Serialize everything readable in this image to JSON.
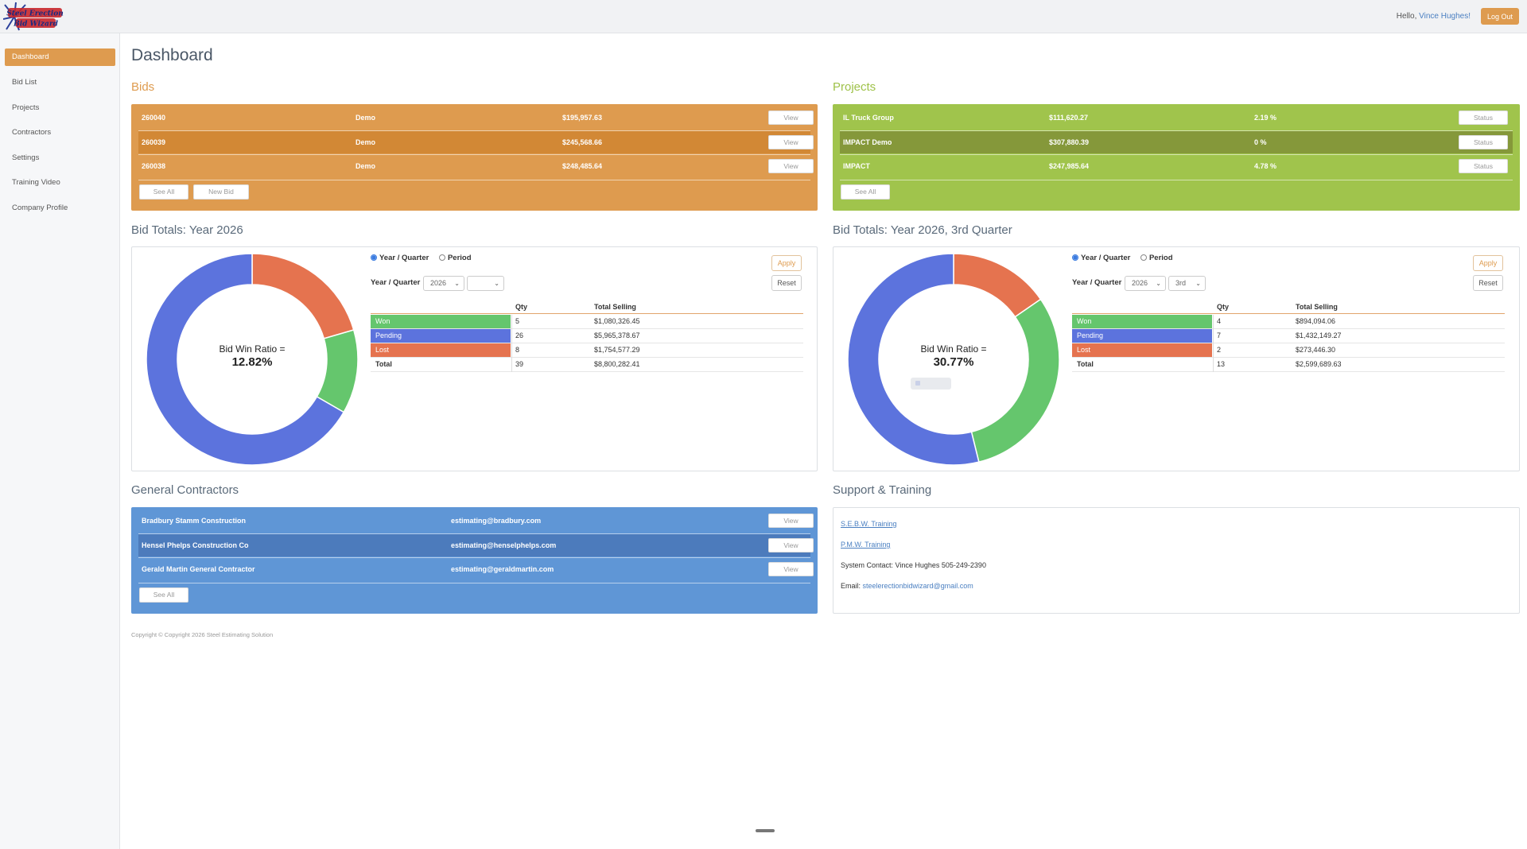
{
  "header": {
    "logo_text": "Steel Erection Bid Wizard",
    "hello": "Hello, ",
    "user_name": "Vince Hughes!",
    "logout": "Log Out"
  },
  "sidebar": {
    "items": [
      {
        "label": "Dashboard",
        "active": true
      },
      {
        "label": "Bid List"
      },
      {
        "label": "Projects"
      },
      {
        "label": "Contractors"
      },
      {
        "label": "Settings"
      },
      {
        "label": "Training Video"
      },
      {
        "label": "Company Profile"
      }
    ]
  },
  "page_title": "Dashboard",
  "bids": {
    "title": "Bids",
    "rows": [
      {
        "id": "260040",
        "name": "Demo",
        "amount": "$195,957.63",
        "action": "View"
      },
      {
        "id": "260039",
        "name": "Demo",
        "amount": "$245,568.66",
        "action": "View"
      },
      {
        "id": "260038",
        "name": "Demo",
        "amount": "$248,485.64",
        "action": "View"
      }
    ],
    "see_all": "See All",
    "new_bid": "New Bid",
    "color": "#de9b4f",
    "highlight": "#d28835"
  },
  "projects": {
    "title": "Projects",
    "rows": [
      {
        "name": "IL Truck Group",
        "amount": "$111,620.27",
        "pct": "2.19 %",
        "action": "Status"
      },
      {
        "name": "IMPACT Demo",
        "amount": "$307,880.39",
        "pct": "0 %",
        "action": "Status"
      },
      {
        "name": "IMPACT",
        "amount": "$247,985.64",
        "pct": "4.78 %",
        "action": "Status"
      }
    ],
    "see_all": "See All",
    "color": "#a0c44c",
    "highlight": "#85983a"
  },
  "bid_totals_year": {
    "title": "Bid Totals: Year 2026",
    "ratio_label": "Bid Win Ratio =",
    "ratio_value": "12.82%",
    "radio_year_quarter": "Year / Quarter",
    "radio_period": "Period",
    "yq_label": "Year / Quarter",
    "year_value": "2026",
    "quarter_value": "",
    "apply": "Apply",
    "reset": "Reset",
    "col_qty": "Qty",
    "col_selling": "Total Selling",
    "rows": [
      {
        "status": "Won",
        "qty": "5",
        "selling": "$1,080,326.45",
        "color": "#65c66d"
      },
      {
        "status": "Pending",
        "qty": "26",
        "selling": "$5,965,378.67",
        "color": "#5c73dd"
      },
      {
        "status": "Lost",
        "qty": "8",
        "selling": "$1,754,577.29",
        "color": "#e5734f"
      },
      {
        "status": "Total",
        "qty": "39",
        "selling": "$8,800,282.41"
      }
    ]
  },
  "bid_totals_quarter": {
    "title": "Bid Totals: Year 2026, 3rd Quarter",
    "ratio_label": "Bid Win Ratio =",
    "ratio_value": "30.77%",
    "radio_year_quarter": "Year / Quarter",
    "radio_period": "Period",
    "yq_label": "Year / Quarter",
    "year_value": "2026",
    "quarter_value": "3rd",
    "apply": "Apply",
    "reset": "Reset",
    "col_qty": "Qty",
    "col_selling": "Total Selling",
    "rows": [
      {
        "status": "Won",
        "qty": "4",
        "selling": "$894,094.06",
        "color": "#65c66d"
      },
      {
        "status": "Pending",
        "qty": "7",
        "selling": "$1,432,149.27",
        "color": "#5c73dd"
      },
      {
        "status": "Lost",
        "qty": "2",
        "selling": "$273,446.30",
        "color": "#e5734f"
      },
      {
        "status": "Total",
        "qty": "13",
        "selling": "$2,599,689.63"
      }
    ]
  },
  "chart_data": [
    {
      "type": "pie",
      "title": "Bid Totals: Year 2026",
      "categories": [
        "Won",
        "Pending",
        "Lost"
      ],
      "values": [
        5,
        26,
        8
      ],
      "colors": [
        "#65c66d",
        "#5c73dd",
        "#e5734f"
      ]
    },
    {
      "type": "pie",
      "title": "Bid Totals: Year 2026, 3rd Quarter",
      "categories": [
        "Won",
        "Pending",
        "Lost"
      ],
      "values": [
        4,
        7,
        2
      ],
      "colors": [
        "#65c66d",
        "#5c73dd",
        "#e5734f"
      ]
    }
  ],
  "contractors": {
    "title": "General Contractors",
    "rows": [
      {
        "name": "Bradbury Stamm Construction",
        "email": "estimating@bradbury.com",
        "action": "View"
      },
      {
        "name": "Hensel Phelps Construction Co",
        "email": "estimating@henselphelps.com",
        "action": "View"
      },
      {
        "name": "Gerald Martin General Contractor",
        "email": "estimating@geraldmartin.com",
        "action": "View"
      }
    ],
    "see_all": "See All",
    "color": "#5f96d6",
    "highlight": "#4c7bbc"
  },
  "support": {
    "title": "Support & Training",
    "link1": "S.E.B.W. Training",
    "link2": "P.M.W. Training",
    "contact": "System Contact: Vince Hughes 505-249-2390",
    "email_label": "Email: ",
    "email": "steelerectionbidwizard@gmail.com"
  },
  "copyright": "Copyright © Copyright 2026 Steel Estimating Solution"
}
